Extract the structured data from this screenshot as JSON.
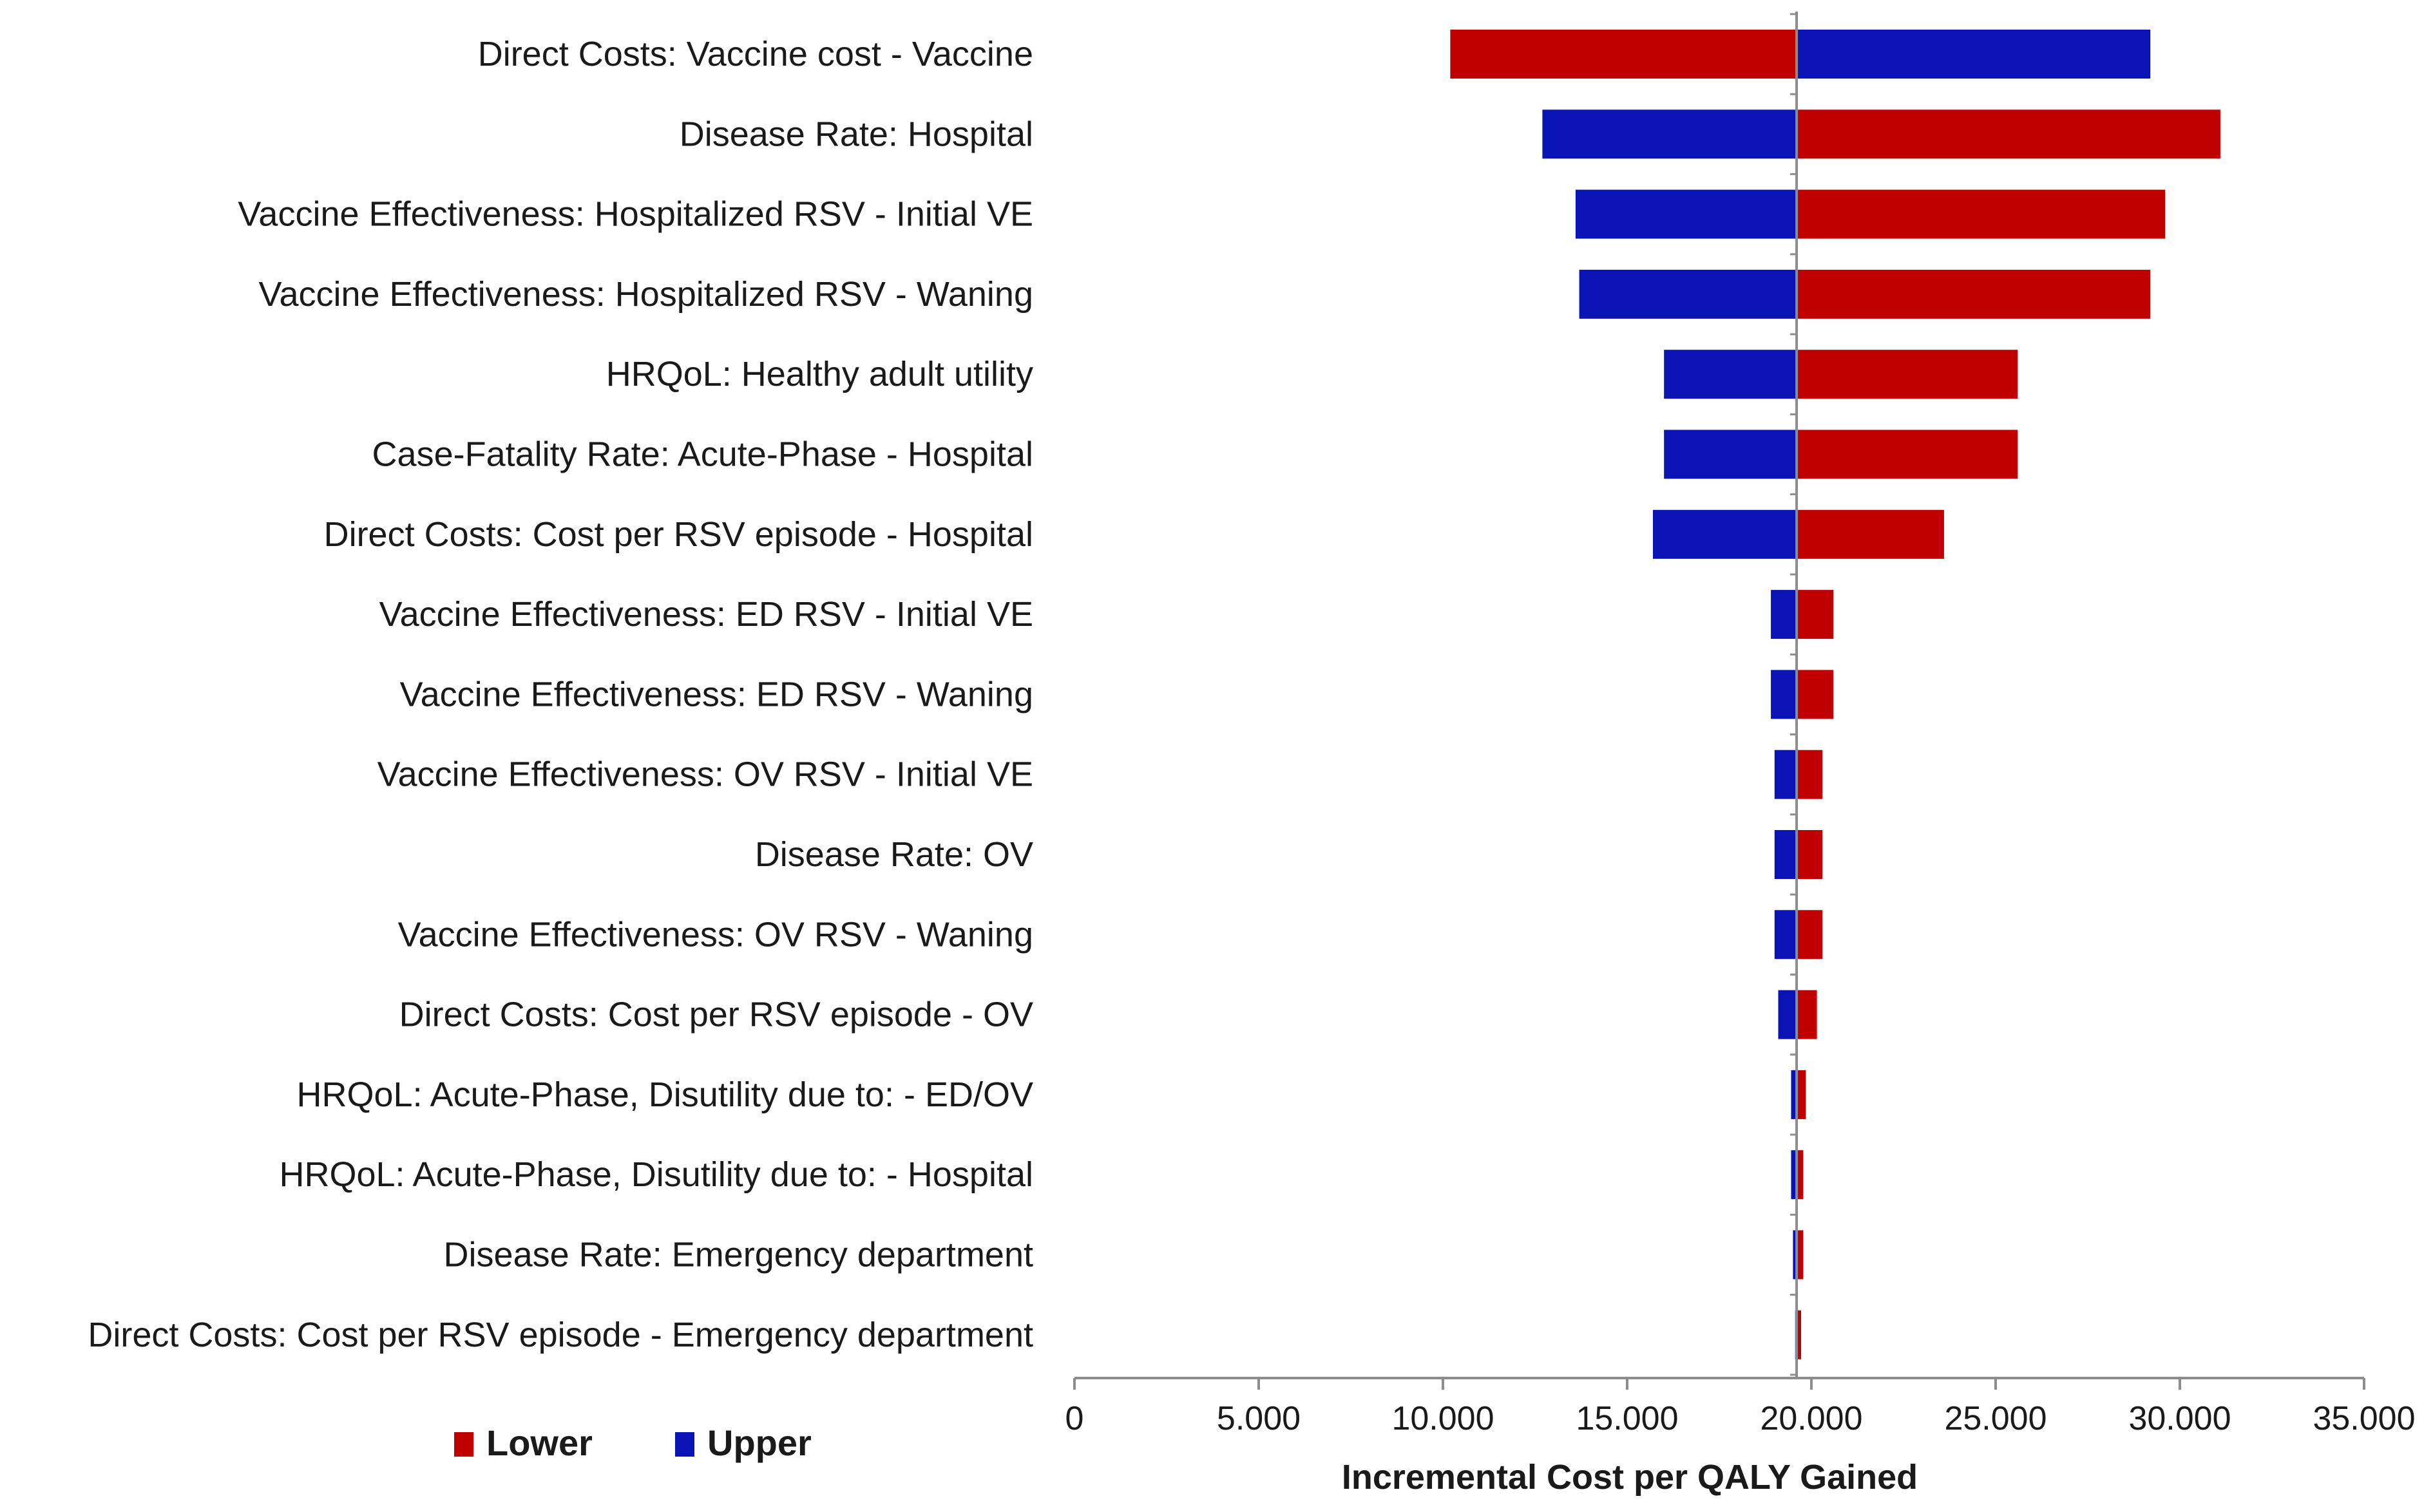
{
  "chart_data": {
    "type": "bar",
    "subtype": "tornado",
    "title": "",
    "xlabel": "Incremental Cost per QALY Gained",
    "ylabel": "",
    "xlim": [
      0,
      35000
    ],
    "xticks": [
      0,
      5000,
      10000,
      15000,
      20000,
      25000,
      30000,
      35000
    ],
    "xtick_labels": [
      "0",
      "5.000",
      "10.000",
      "15.000",
      "20.000",
      "25.000",
      "30.000",
      "35.000"
    ],
    "base_value": 19600,
    "categories": [
      "Direct Costs: Vaccine cost - Vaccine",
      "Disease Rate: Hospital",
      "Vaccine Effectiveness: Hospitalized RSV - Initial VE",
      "Vaccine Effectiveness: Hospitalized RSV - Waning",
      "HRQoL: Healthy adult utility",
      "Case-Fatality Rate: Acute-Phase - Hospital",
      "Direct Costs: Cost per RSV episode - Hospital",
      "Vaccine Effectiveness: ED RSV - Initial VE",
      "Vaccine Effectiveness: ED RSV - Waning",
      "Vaccine Effectiveness: OV RSV - Initial VE",
      "Disease Rate: OV",
      "Vaccine Effectiveness: OV RSV - Waning",
      "Direct Costs: Cost per RSV episode - OV",
      "HRQoL: Acute-Phase, Disutility due to: - ED/OV",
      "HRQoL: Acute-Phase, Disutility due to: - Hospital",
      "Disease Rate: Emergency department",
      "Direct Costs: Cost per RSV episode - Emergency department"
    ],
    "series": [
      {
        "name": "Lower",
        "color": "#c00000",
        "values": [
          10200,
          31100,
          29600,
          29200,
          25600,
          25600,
          23600,
          20600,
          20600,
          20300,
          20300,
          20300,
          20150,
          19850,
          19780,
          19780,
          19720
        ]
      },
      {
        "name": "Upper",
        "color": "#0a14b4",
        "values": [
          29200,
          12700,
          13600,
          13700,
          16000,
          16000,
          15700,
          18900,
          18900,
          19000,
          19000,
          19000,
          19100,
          19450,
          19450,
          19500,
          19560
        ]
      }
    ],
    "legend": {
      "position": "bottom-left",
      "entries": [
        "Lower",
        "Upper"
      ]
    },
    "grid": false
  }
}
